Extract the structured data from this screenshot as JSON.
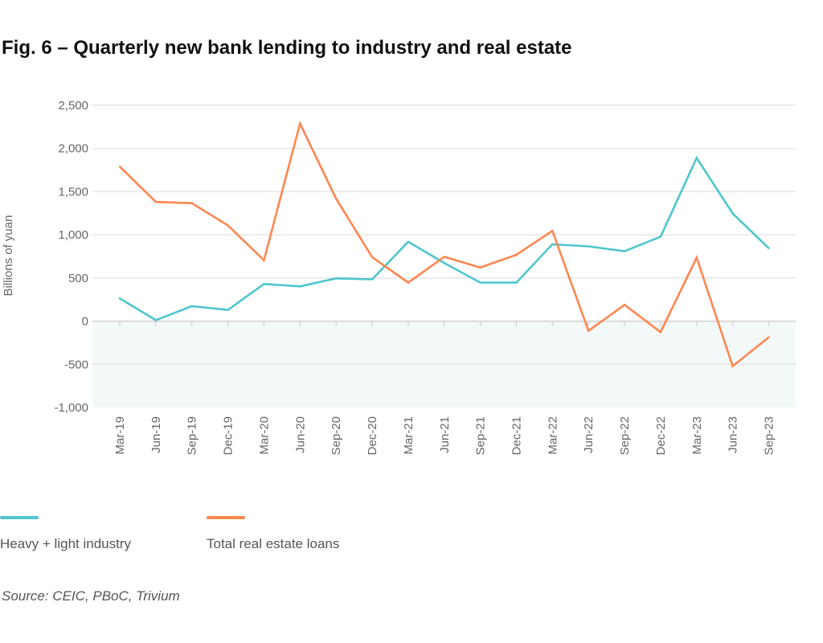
{
  "title": "Fig. 6 – Quarterly new bank lending to industry and real estate",
  "chart_data": {
    "type": "line",
    "title": "Fig. 6 – Quarterly new bank lending to industry and real estate",
    "xlabel": "",
    "ylabel": "Billions of yuan",
    "ylim": [
      -1000,
      2500
    ],
    "yticks": [
      2500,
      2000,
      1500,
      1000,
      500,
      0,
      -500,
      -1000
    ],
    "ytick_labels": [
      "2,500",
      "2,000",
      "1,500",
      "1,000",
      "500",
      "0",
      "-500",
      "-1,000"
    ],
    "grid": true,
    "negative_region_shaded": true,
    "legend_position": "bottom",
    "categories": [
      "Mar-19",
      "Jun-19",
      "Sep-19",
      "Dec-19",
      "Mar-20",
      "Jun-20",
      "Sep-20",
      "Dec-20",
      "Mar-21",
      "Jun-21",
      "Sep-21",
      "Dec-21",
      "Mar-22",
      "Jun-22",
      "Sep-22",
      "Dec-22",
      "Mar-23",
      "Jun-23",
      "Sep-23"
    ],
    "series": [
      {
        "name": "Heavy + light industry",
        "color": "#4fc6cd",
        "values": [
          264,
          12,
          174,
          130,
          431,
          403,
          496,
          484,
          919,
          673,
          447,
          447,
          891,
          866,
          810,
          978,
          1890,
          1248,
          845
        ]
      },
      {
        "name": "Total real estate loans",
        "color": "#ff8650",
        "values": [
          1790,
          1381,
          1366,
          1108,
          705,
          2288,
          1418,
          742,
          447,
          745,
          621,
          770,
          1046,
          -112,
          189,
          -127,
          736,
          -521,
          -186
        ]
      }
    ]
  },
  "source": "Source: CEIC, PBoC, Trivium"
}
